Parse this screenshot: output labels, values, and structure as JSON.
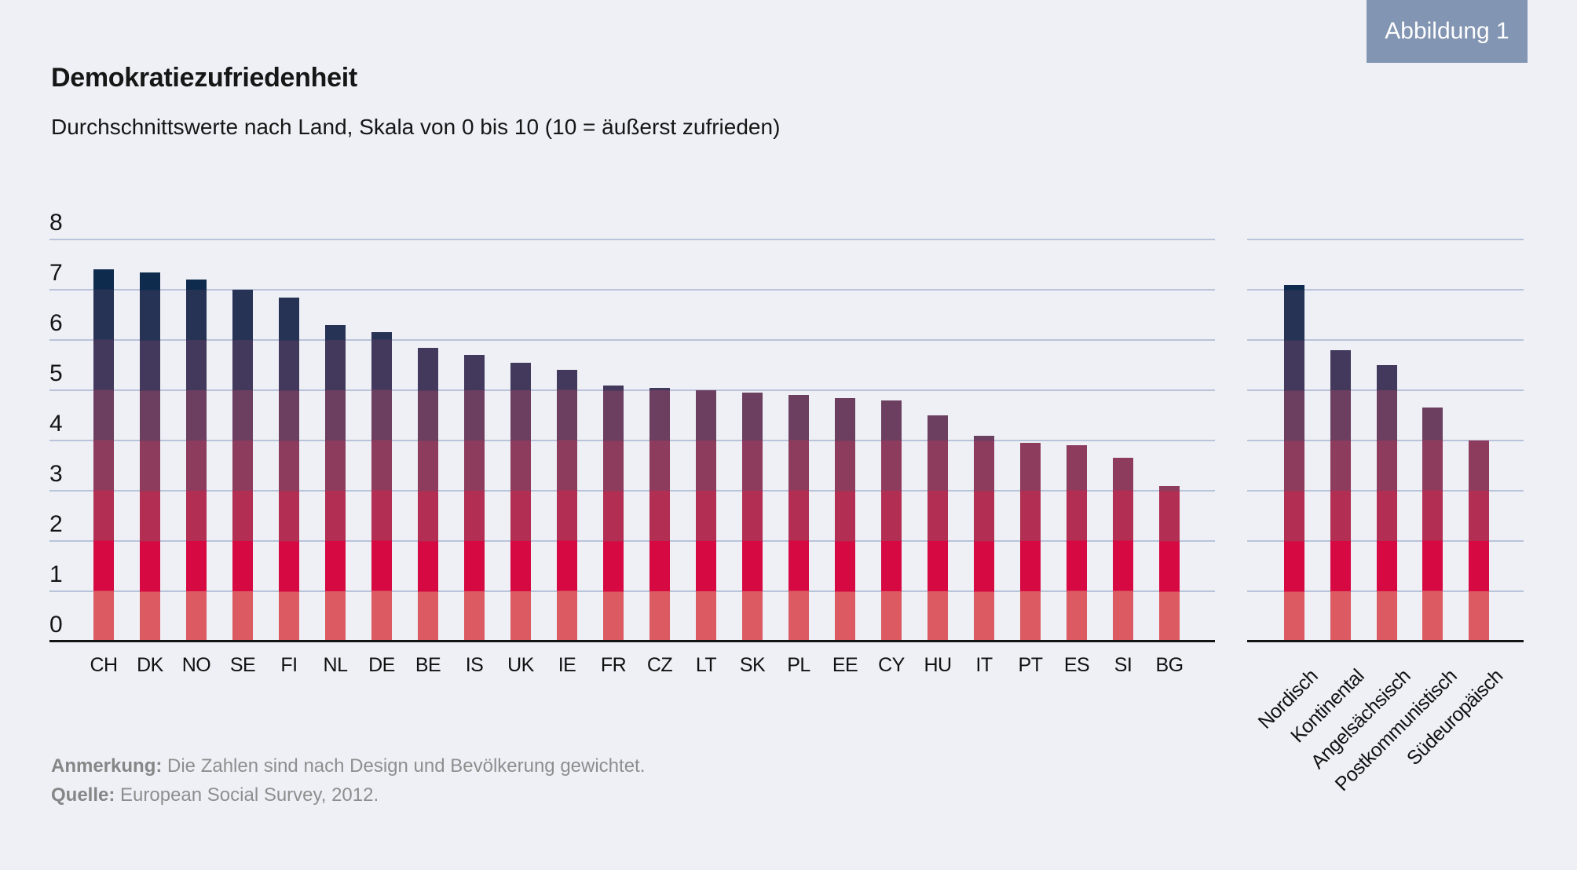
{
  "figure_label": "Abbildung 1",
  "title": "Demokratiezufriedenheit",
  "subtitle": "Durchschnittswerte nach Land, Skala von 0 bis 10 (10 = äußerst zufrieden)",
  "footer": {
    "note_label": "Anmerkung:",
    "note_text": " Die Zahlen sind nach Design und Bevölkerung gewichtet.",
    "source_label": "Quelle:",
    "source_text": " European Social Survey, 2012."
  },
  "colors": {
    "background": "#eef0f6",
    "badge_background": "#8295b2",
    "badge_text": "#ffffff",
    "grid_line": "#b9c3d9",
    "axis_line": "#141414",
    "footer_text": "#8e8e8e",
    "gradient_bands_bottom_to_top": [
      "#dc5a61",
      "#d60943",
      "#b22e52",
      "#8e3c5e",
      "#6c3f60",
      "#42395c",
      "#273355",
      "#0e2b4d"
    ]
  },
  "chart_data": [
    {
      "id": "main-chart",
      "type": "bar",
      "title": "Demokratiezufriedenheit nach Land",
      "categories": [
        "CH",
        "DK",
        "NO",
        "SE",
        "FI",
        "NL",
        "DE",
        "BE",
        "IS",
        "UK",
        "IE",
        "FR",
        "CZ",
        "LT",
        "SK",
        "PL",
        "EE",
        "CY",
        "HU",
        "IT",
        "PT",
        "ES",
        "SI",
        "BG"
      ],
      "values": [
        7.4,
        7.35,
        7.2,
        7.0,
        6.85,
        6.3,
        6.15,
        5.85,
        5.7,
        5.55,
        5.4,
        5.1,
        5.05,
        5.0,
        4.95,
        4.9,
        4.85,
        4.8,
        4.5,
        4.1,
        3.95,
        3.9,
        3.65,
        3.1
      ],
      "xlabel": "",
      "ylabel": "",
      "ylim": [
        0,
        8
      ],
      "yticks": [
        0,
        1,
        2,
        3,
        4,
        5,
        6,
        7,
        8
      ],
      "show_tick_labels": true,
      "grid": true,
      "label_rotation": 0
    },
    {
      "id": "group-chart",
      "type": "bar",
      "title": "Demokratiezufriedenheit nach Ländergruppe",
      "categories": [
        "Nordisch",
        "Kontinental",
        "Angelsächsisch",
        "Postkommunistisch",
        "Südeuropäisch"
      ],
      "values": [
        7.1,
        5.8,
        5.5,
        4.65,
        4.0
      ],
      "xlabel": "",
      "ylabel": "",
      "ylim": [
        0,
        8
      ],
      "yticks": [
        0,
        1,
        2,
        3,
        4,
        5,
        6,
        7,
        8
      ],
      "show_tick_labels": false,
      "grid": true,
      "label_rotation": -45
    }
  ]
}
